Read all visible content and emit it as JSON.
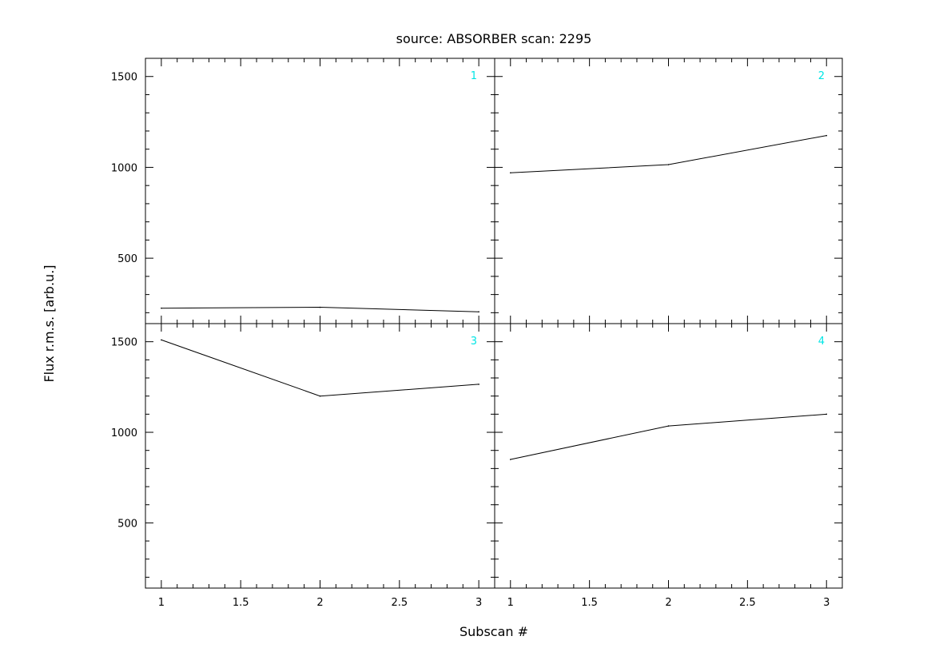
{
  "chart_data": {
    "type": "line",
    "title": "source: ABSORBER  scan: 2295",
    "xlabel": "Subscan #",
    "ylabel": "Flux r.m.s. [arb.u.]",
    "xlim": [
      0.9,
      3.1
    ],
    "ylim": [
      140,
      1600
    ],
    "x_ticks": [
      1,
      1.5,
      2,
      2.5,
      3
    ],
    "x_tick_labels": [
      "1",
      "1.5",
      "2",
      "2.5",
      "3"
    ],
    "y_ticks": [
      500,
      1000,
      1500
    ],
    "y_tick_labels": [
      "500",
      "1000",
      "1500"
    ],
    "panel_number_color": "#00e5e5",
    "panels": [
      {
        "label": "1",
        "x": [
          1,
          2,
          3
        ],
        "values": [
          225,
          230,
          205
        ]
      },
      {
        "label": "2",
        "x": [
          1,
          2,
          3
        ],
        "values": [
          970,
          1015,
          1175
        ]
      },
      {
        "label": "3",
        "x": [
          1,
          2,
          3
        ],
        "values": [
          1510,
          1200,
          1265
        ]
      },
      {
        "label": "4",
        "x": [
          1,
          2,
          3
        ],
        "values": [
          850,
          1035,
          1100
        ]
      }
    ]
  }
}
